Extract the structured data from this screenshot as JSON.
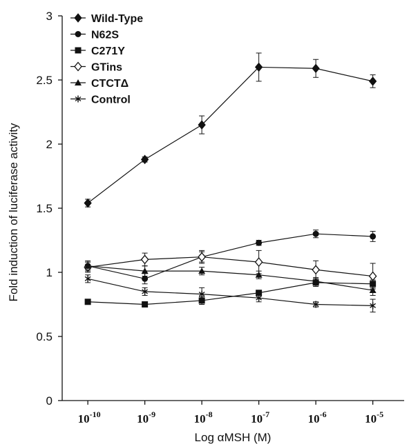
{
  "chart_data": {
    "type": "line",
    "xlabel": "Log αMSH (M)",
    "ylabel": "Fold induction of luciferase activity",
    "x_tick_labels": [
      {
        "base": "10",
        "exp": "-10"
      },
      {
        "base": "10",
        "exp": "-9"
      },
      {
        "base": "10",
        "exp": "-8"
      },
      {
        "base": "10",
        "exp": "-7"
      },
      {
        "base": "10",
        "exp": "-6"
      },
      {
        "base": "10",
        "exp": "-5"
      }
    ],
    "x": [
      -10,
      -9,
      -8,
      -7,
      -6,
      -5
    ],
    "xlim": [
      -10.45,
      -4.45
    ],
    "y_ticks": [
      "0",
      "0.5",
      "1",
      "1.5",
      "2",
      "2.5",
      "3"
    ],
    "ylim": [
      0,
      3
    ],
    "grid": false,
    "legend_position": "top-left",
    "color": "#111111",
    "series": [
      {
        "name": "Wild-Type",
        "marker": "diamond-filled",
        "values": [
          1.54,
          1.88,
          2.15,
          2.6,
          2.59,
          2.49
        ],
        "errors": [
          0.03,
          0.02,
          0.07,
          0.11,
          0.07,
          0.05
        ]
      },
      {
        "name": "N62S",
        "marker": "circle-filled",
        "values": [
          1.05,
          0.95,
          1.12,
          1.23,
          1.3,
          1.28
        ],
        "errors": [
          0.03,
          0.04,
          0.05,
          0.02,
          0.03,
          0.04
        ]
      },
      {
        "name": "C271Y",
        "marker": "square-filled",
        "values": [
          0.77,
          0.75,
          0.78,
          0.84,
          0.92,
          0.91
        ],
        "errors": [
          0.02,
          0.02,
          0.03,
          0.02,
          0.03,
          0.03
        ]
      },
      {
        "name": "GTins",
        "marker": "diamond-open",
        "values": [
          1.04,
          1.1,
          1.12,
          1.08,
          1.02,
          0.97
        ],
        "errors": [
          0.04,
          0.05,
          0.04,
          0.09,
          0.07,
          0.1
        ]
      },
      {
        "name": "CTCTΔ",
        "marker": "triangle-filled",
        "values": [
          1.05,
          1.01,
          1.01,
          0.98,
          0.93,
          0.86
        ],
        "errors": [
          0.04,
          0.04,
          0.03,
          0.03,
          0.03,
          0.04
        ]
      },
      {
        "name": "Control",
        "marker": "asterisk",
        "values": [
          0.95,
          0.85,
          0.83,
          0.8,
          0.75,
          0.74
        ],
        "errors": [
          0.03,
          0.03,
          0.05,
          0.03,
          0.02,
          0.05
        ]
      }
    ]
  }
}
